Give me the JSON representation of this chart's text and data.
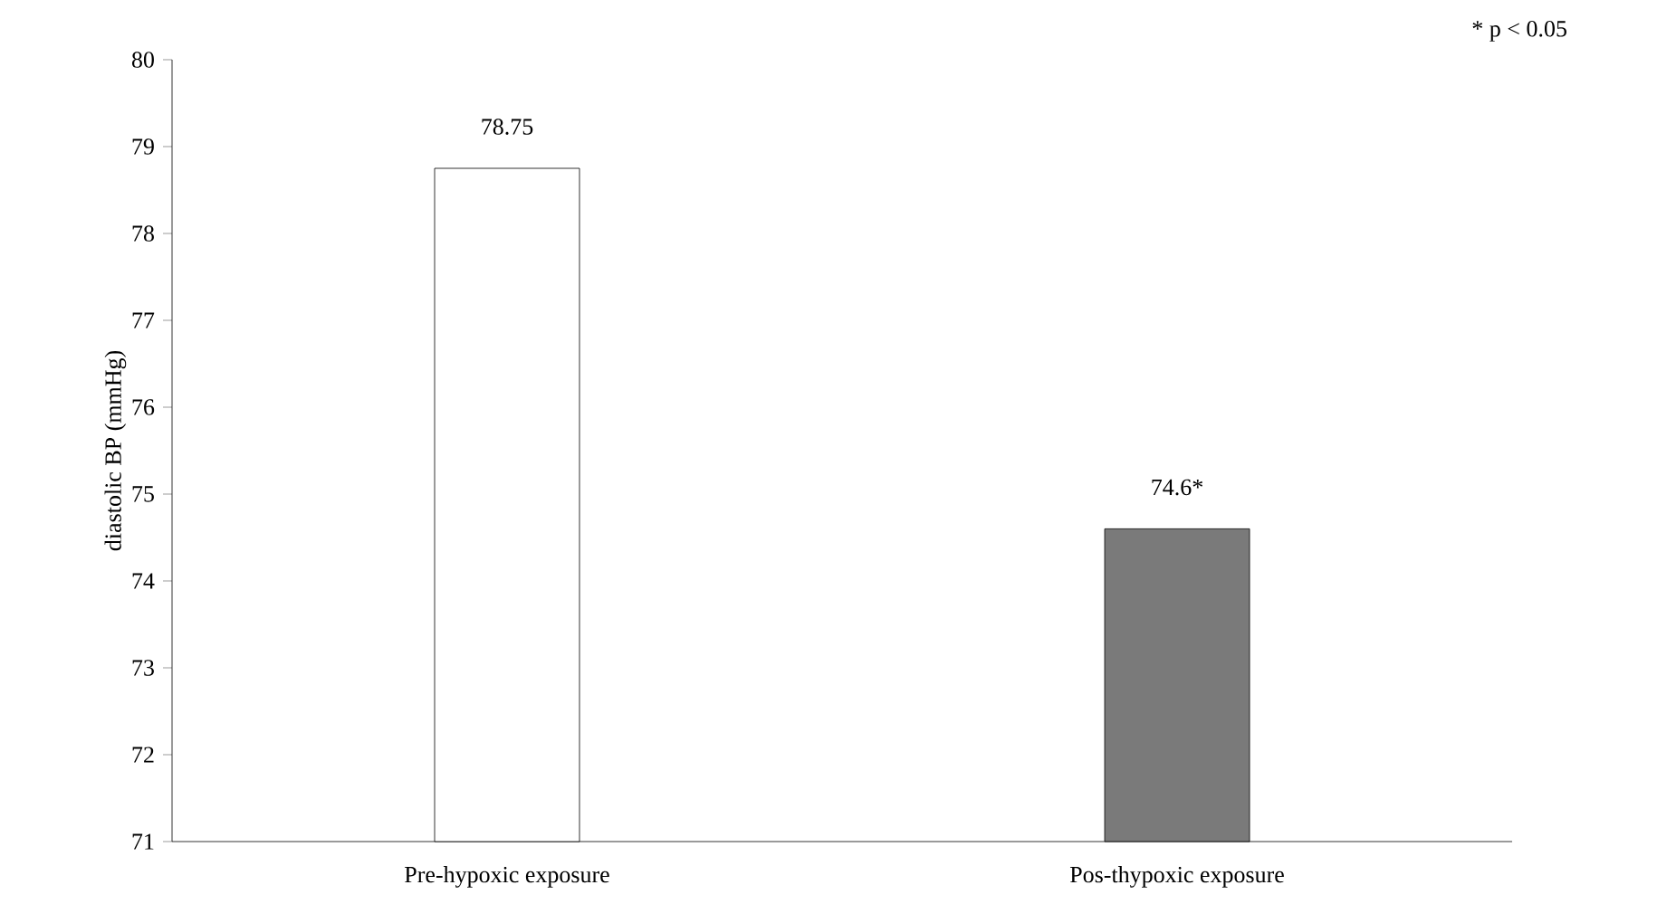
{
  "chart_data": {
    "type": "bar",
    "ylabel": "diastolic BP (mmHg)",
    "categories": [
      "Pre-hypoxic exposure",
      "Pos-thypoxic exposure"
    ],
    "values": [
      78.75,
      74.6
    ],
    "colors": [
      "#ffffff",
      "#7a7a7a"
    ],
    "value_labels": [
      "78.75",
      "74.6*"
    ],
    "ylim": [
      71,
      80
    ],
    "yticks": [
      71,
      72,
      73,
      74,
      75,
      76,
      77,
      78,
      79,
      80
    ],
    "annotations": [
      "* p < 0.05"
    ]
  }
}
